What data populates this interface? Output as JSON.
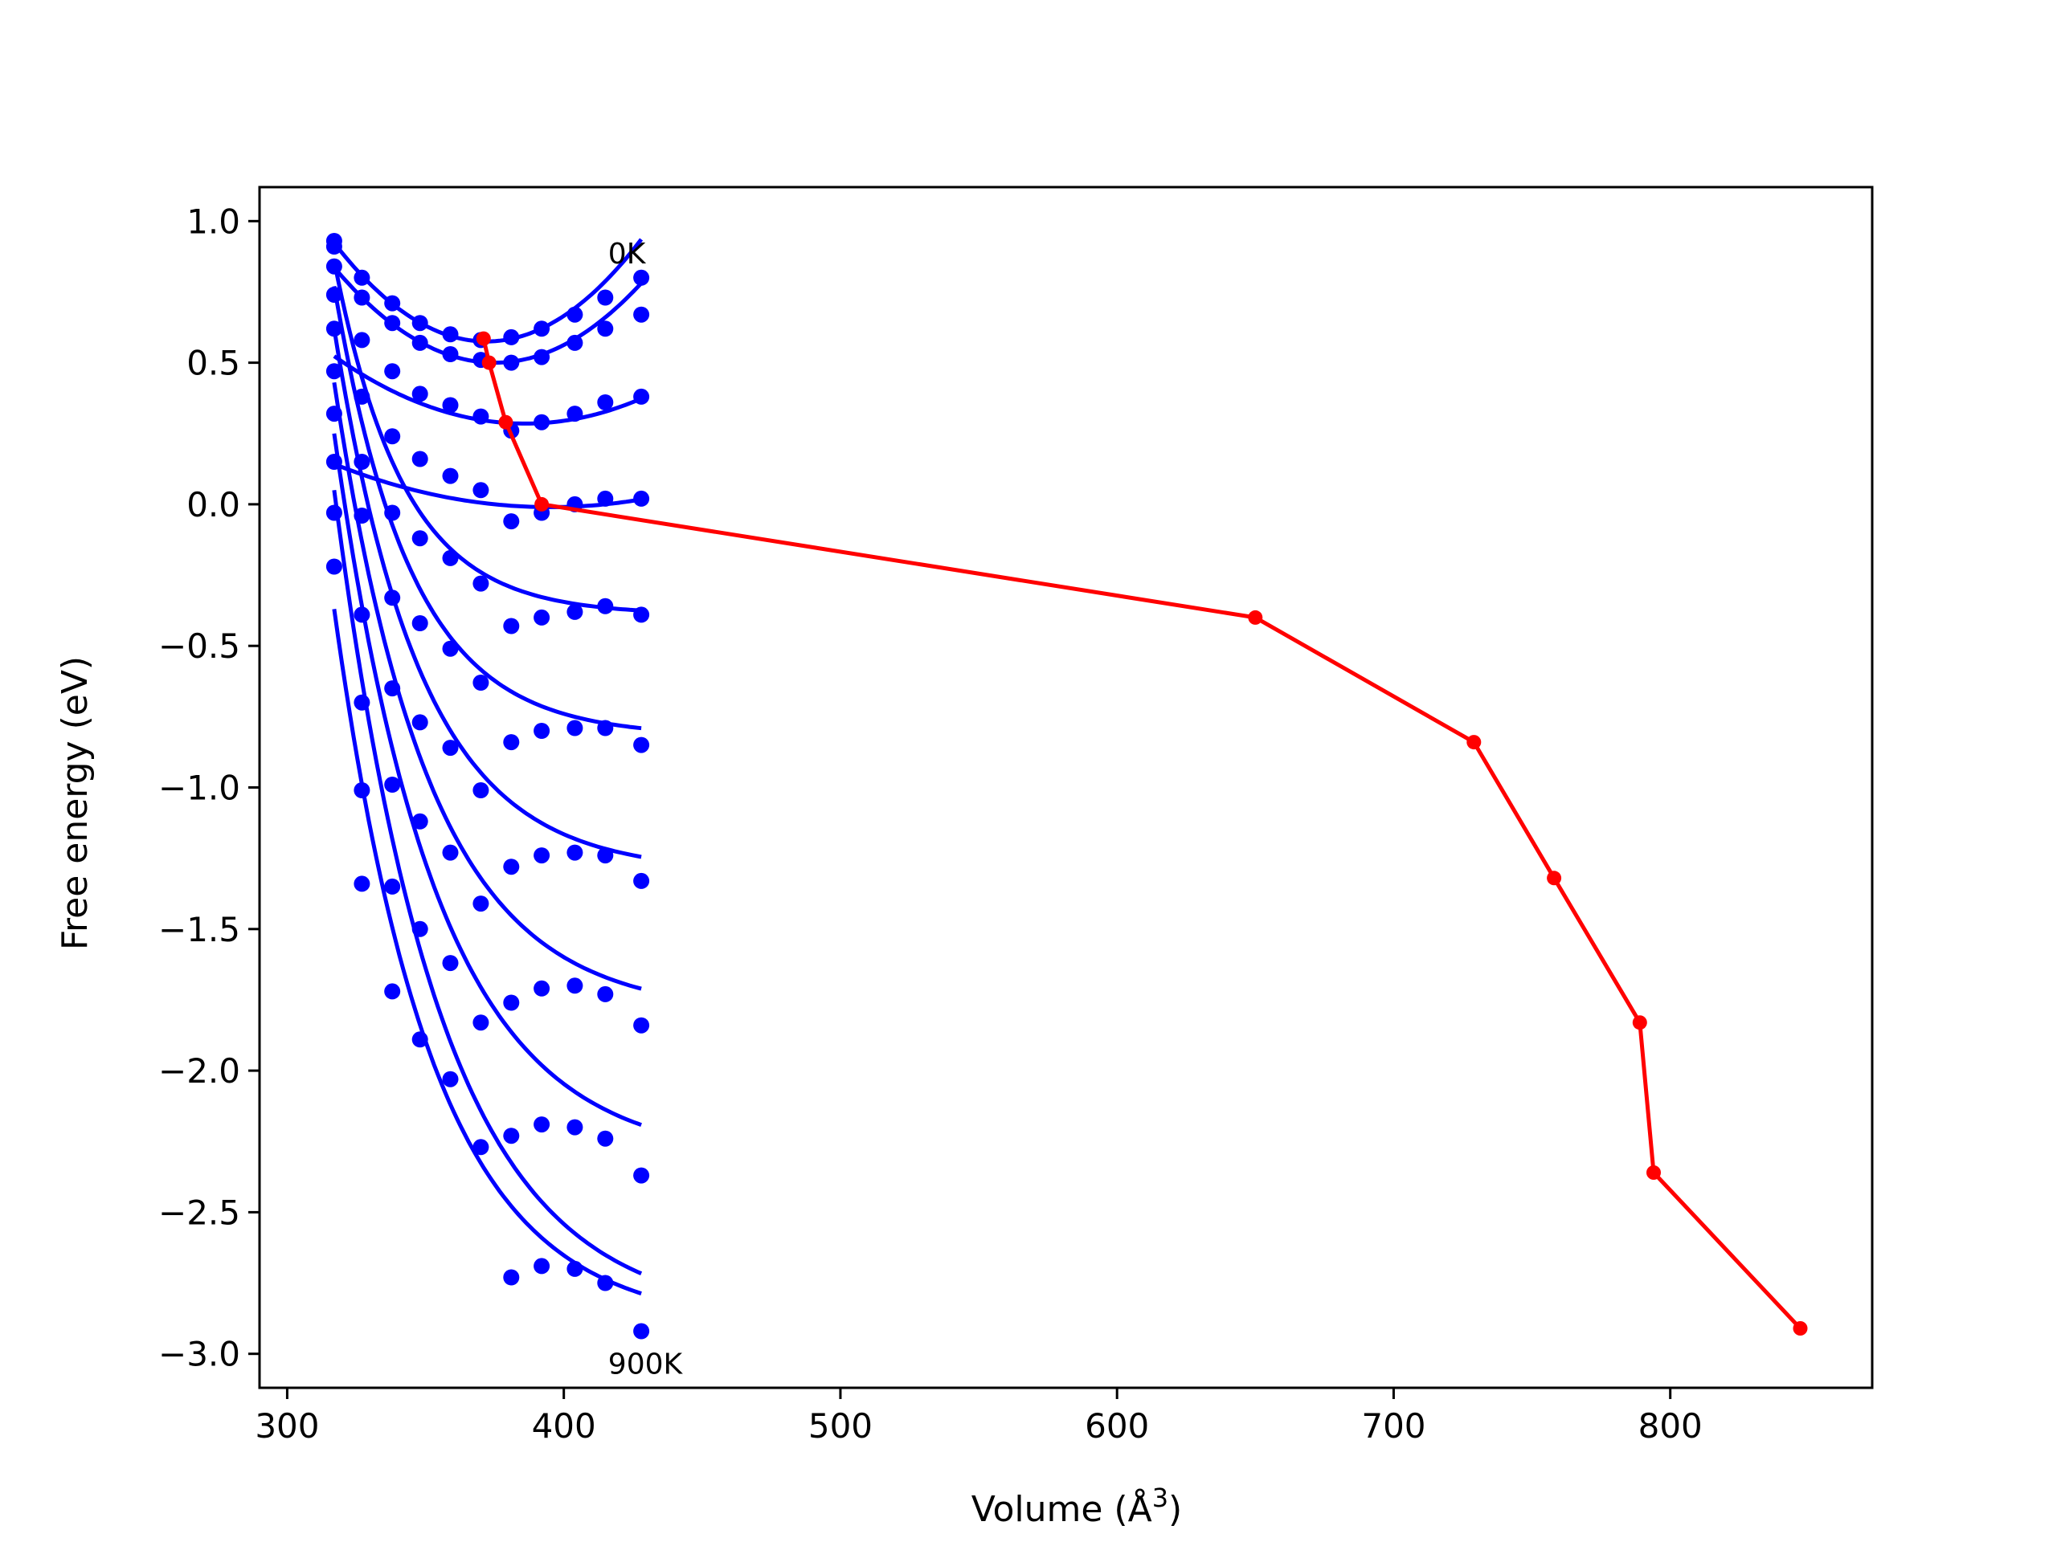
{
  "chart_data": {
    "type": "scatter",
    "title": "",
    "xlabel_prefix": "Volume (",
    "xlabel_unit": "Å",
    "xlabel_exp": "3",
    "xlabel_suffix": ")",
    "ylabel": "Free energy (eV)",
    "xlim": [
      290,
      873
    ],
    "ylim": [
      -3.12,
      1.12
    ],
    "xticks": [
      300,
      400,
      500,
      600,
      700,
      800
    ],
    "yticks": [
      1.0,
      0.5,
      0.0,
      -0.5,
      -1.0,
      -1.5,
      -2.0,
      -2.5,
      -3.0
    ],
    "ytick_labels": [
      "1.0",
      "0.5",
      "0.0",
      "−0.5",
      "−1.0",
      "−1.5",
      "−2.0",
      "−2.5",
      "−3.0"
    ],
    "annotations": [
      {
        "text": "0K",
        "x": 416,
        "y": 0.85
      },
      {
        "text": "900K",
        "x": 416,
        "y": -3.07
      }
    ],
    "volumes": [
      317,
      327,
      338,
      348,
      359,
      370,
      381,
      392,
      404,
      415,
      428
    ],
    "fit_x_range": [
      317,
      428
    ],
    "series": [
      {
        "color": "#0000ff",
        "points": [
          0.93,
          0.8,
          0.71,
          0.64,
          0.6,
          0.58,
          0.59,
          0.62,
          0.67,
          0.73,
          0.8
        ],
        "fit": {
          "min_v": 372,
          "min_e": 0.575,
          "a": 0.000115
        }
      },
      {
        "color": "#0000ff",
        "points": [
          0.91,
          0.73,
          0.64,
          0.57,
          0.53,
          0.51,
          0.5,
          0.52,
          0.57,
          0.62,
          0.67
        ],
        "fit": {
          "min_v": 375,
          "min_e": 0.5,
          "a": 0.0001
        }
      },
      {
        "color": "#0000ff",
        "points": [
          0.84,
          0.58,
          0.47,
          0.39,
          0.35,
          0.31,
          0.26,
          0.29,
          0.32,
          0.36,
          0.38
        ],
        "fit": {
          "min_v": 386,
          "min_e": 0.285,
          "a": 5e-05
        }
      },
      {
        "color": "#0000ff",
        "points": [
          0.74,
          0.38,
          0.24,
          0.16,
          0.1,
          0.05,
          -0.06,
          -0.03,
          0.0,
          0.02,
          0.02
        ],
        "fit": {
          "min_v": 395,
          "min_e": -0.01,
          "a": 2.5e-05
        }
      },
      {
        "color": "#0000ff",
        "points": [
          0.62,
          0.15,
          -0.03,
          -0.12,
          -0.19,
          -0.28,
          -0.43,
          -0.4,
          -0.38,
          -0.36,
          -0.39
        ],
        "fit": {
          "min_v": 0,
          "min_e": 0,
          "a": 0
        }
      },
      {
        "color": "#0000ff",
        "points": [
          0.47,
          -0.04,
          -0.33,
          -0.42,
          -0.51,
          -0.63,
          -0.84,
          -0.8,
          -0.79,
          -0.79,
          -0.85
        ],
        "fit": {
          "min_v": 0,
          "min_e": 0,
          "a": 0
        }
      },
      {
        "color": "#0000ff",
        "points": [
          0.32,
          -0.39,
          -0.65,
          -0.77,
          -0.86,
          -1.01,
          -1.28,
          -1.24,
          -1.23,
          -1.24,
          -1.33
        ],
        "fit": {
          "min_v": 0,
          "min_e": 0,
          "a": 0
        }
      },
      {
        "color": "#0000ff",
        "points": [
          0.15,
          -0.7,
          -0.99,
          -1.12,
          -1.23,
          -1.41,
          -1.76,
          -1.71,
          -1.7,
          -1.73,
          -1.84
        ],
        "fit": {
          "min_v": 0,
          "min_e": 0,
          "a": 0
        }
      },
      {
        "color": "#0000ff",
        "points": [
          -0.03,
          -1.01,
          -1.35,
          -1.5,
          -1.62,
          -1.83,
          -2.23,
          -2.19,
          -2.2,
          -2.24,
          -2.37
        ],
        "fit": {
          "min_v": 0,
          "min_e": 0,
          "a": 0
        }
      },
      {
        "color": "#0000ff",
        "points": [
          -0.22,
          -1.34,
          -1.72,
          -1.89,
          -2.03,
          -2.27,
          -2.73,
          -2.69,
          -2.7,
          -2.75,
          -2.92
        ],
        "fit": {
          "min_v": 0,
          "min_e": 0,
          "a": 0
        }
      }
    ],
    "decay_fits": [
      {
        "start": 0.86,
        "end": -0.39,
        "k": 0.04
      },
      {
        "start": 0.77,
        "end": -0.82,
        "k": 0.036
      },
      {
        "start": 0.62,
        "end": -1.3,
        "k": 0.032
      },
      {
        "start": 0.43,
        "end": -1.8,
        "k": 0.029
      },
      {
        "start": 0.25,
        "end": -2.32,
        "k": 0.027
      },
      {
        "start": 0.05,
        "end": -2.88,
        "k": 0.026
      },
      {
        "start": -0.37,
        "end": -2.9,
        "k": 0.028
      }
    ],
    "minima_path": {
      "color": "#ff0000",
      "x": [
        371,
        373,
        379,
        392,
        650,
        729,
        758,
        789,
        794,
        847
      ],
      "y": [
        0.585,
        0.5,
        0.29,
        0.0,
        -0.4,
        -0.84,
        -1.32,
        -1.83,
        -2.36,
        -2.91
      ]
    }
  }
}
